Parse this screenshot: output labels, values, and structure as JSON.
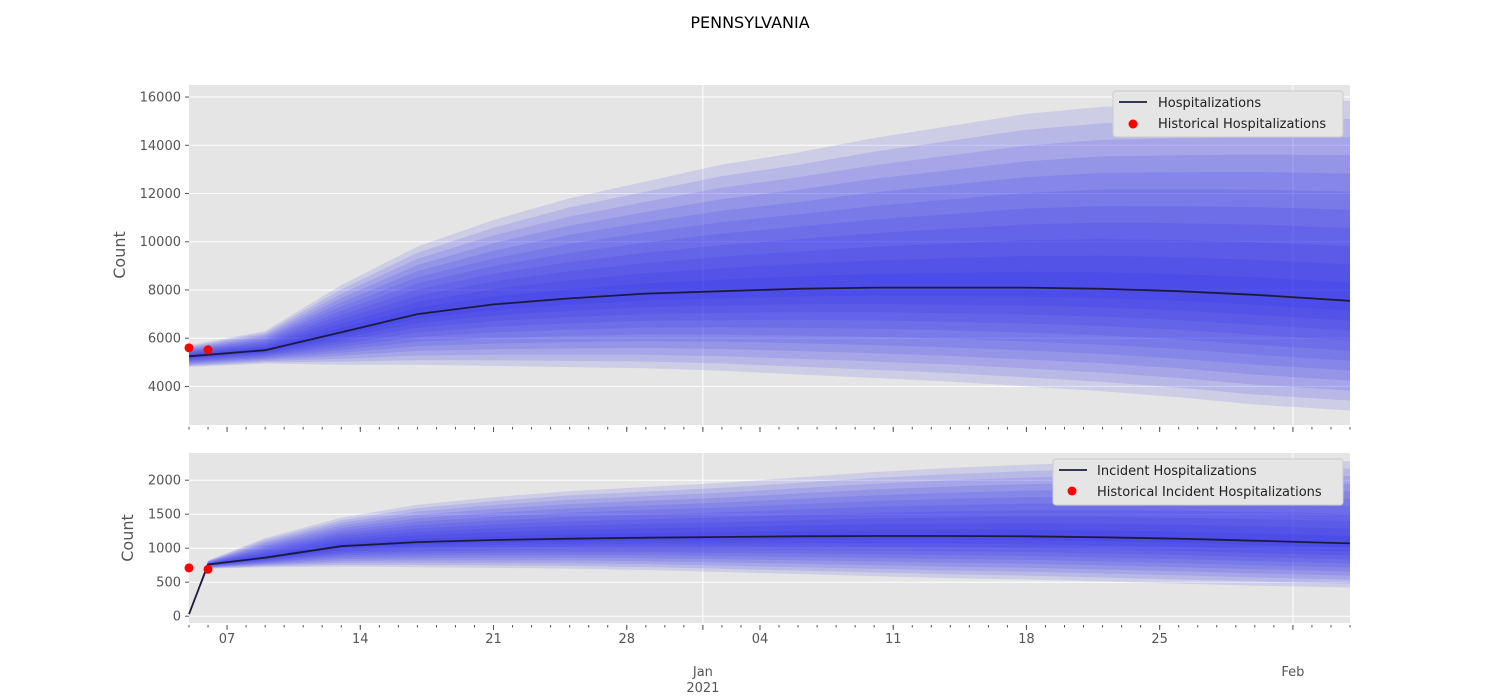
{
  "figure_title": "PENNSYLVANIA",
  "colors": {
    "panel_bg": "#e5e5e5",
    "grid": "#ffffff",
    "band": "#2222ee",
    "median_line": "#1c1c3a",
    "historical_points": "#ff0000"
  },
  "x_axis": {
    "major_ticks": [
      {
        "label": "07",
        "date": "2020-12-07"
      },
      {
        "label": "14",
        "date": "2020-12-14"
      },
      {
        "label": "21",
        "date": "2020-12-21"
      },
      {
        "label": "28",
        "date": "2020-12-28"
      },
      {
        "label": "Jan",
        "sub": "2021",
        "date": "2021-01-01"
      },
      {
        "label": "04",
        "date": "2021-01-04"
      },
      {
        "label": "11",
        "date": "2021-01-11"
      },
      {
        "label": "18",
        "date": "2021-01-18"
      },
      {
        "label": "25",
        "date": "2021-01-25"
      },
      {
        "label": "Feb",
        "date": "2021-02-01"
      }
    ],
    "range": [
      "2020-12-05",
      "2021-02-04"
    ]
  },
  "chart_data": [
    {
      "type": "area",
      "title": "",
      "ylabel": "Count",
      "xlim": [
        "2020-12-05",
        "2021-02-04"
      ],
      "ylim": [
        2400,
        16500
      ],
      "yticks": [
        4000,
        6000,
        8000,
        10000,
        12000,
        14000,
        16000
      ],
      "grid": true,
      "legend_position": "top-right",
      "legend": [
        "Hospitalizations",
        "Historical Hospitalizations"
      ],
      "x": [
        "2020-12-05",
        "2020-12-09",
        "2020-12-13",
        "2020-12-17",
        "2020-12-21",
        "2020-12-25",
        "2020-12-29",
        "2021-01-02",
        "2021-01-06",
        "2021-01-10",
        "2021-01-14",
        "2021-01-18",
        "2021-01-22",
        "2021-01-26",
        "2021-01-30",
        "2021-02-04"
      ],
      "median": [
        5250,
        5500,
        6250,
        7000,
        7400,
        7650,
        7850,
        7950,
        8050,
        8100,
        8100,
        8100,
        8050,
        7950,
        7800,
        7550
      ],
      "lower": [
        4800,
        4950,
        4900,
        4900,
        4850,
        4800,
        4750,
        4650,
        4500,
        4350,
        4200,
        4000,
        3800,
        3550,
        3250,
        3000
      ],
      "upper": [
        5700,
        6300,
        8200,
        9800,
        10900,
        11800,
        12500,
        13200,
        13700,
        14300,
        14800,
        15300,
        15600,
        15700,
        15800,
        15850
      ],
      "historical": {
        "x": [
          "2020-12-05",
          "2020-12-06"
        ],
        "y": [
          5600,
          5520
        ]
      }
    },
    {
      "type": "area",
      "title": "",
      "ylabel": "Count",
      "xlim": [
        "2020-12-05",
        "2021-02-04"
      ],
      "ylim": [
        -100,
        2400
      ],
      "yticks": [
        0,
        500,
        1000,
        1500,
        2000
      ],
      "grid": true,
      "legend_position": "top-right",
      "legend": [
        "Incident Hospitalizations",
        "Historical Incident Hospitalizations"
      ],
      "x": [
        "2020-12-05",
        "2020-12-06",
        "2020-12-09",
        "2020-12-13",
        "2020-12-17",
        "2020-12-21",
        "2020-12-25",
        "2020-12-29",
        "2021-01-02",
        "2021-01-06",
        "2021-01-10",
        "2021-01-14",
        "2021-01-18",
        "2021-01-22",
        "2021-01-26",
        "2021-01-30",
        "2021-02-04"
      ],
      "median": [
        30,
        760,
        860,
        1030,
        1090,
        1120,
        1140,
        1155,
        1165,
        1175,
        1180,
        1180,
        1175,
        1160,
        1140,
        1110,
        1070
      ],
      "lower": [
        30,
        700,
        720,
        730,
        720,
        710,
        700,
        680,
        650,
        620,
        590,
        560,
        540,
        510,
        480,
        450,
        420
      ],
      "upper": [
        30,
        820,
        1150,
        1450,
        1640,
        1750,
        1840,
        1900,
        1960,
        2040,
        2120,
        2180,
        2230,
        2260,
        2270,
        2280,
        2280
      ],
      "historical": {
        "x": [
          "2020-12-05",
          "2020-12-06"
        ],
        "y": [
          710,
          690
        ]
      }
    }
  ]
}
